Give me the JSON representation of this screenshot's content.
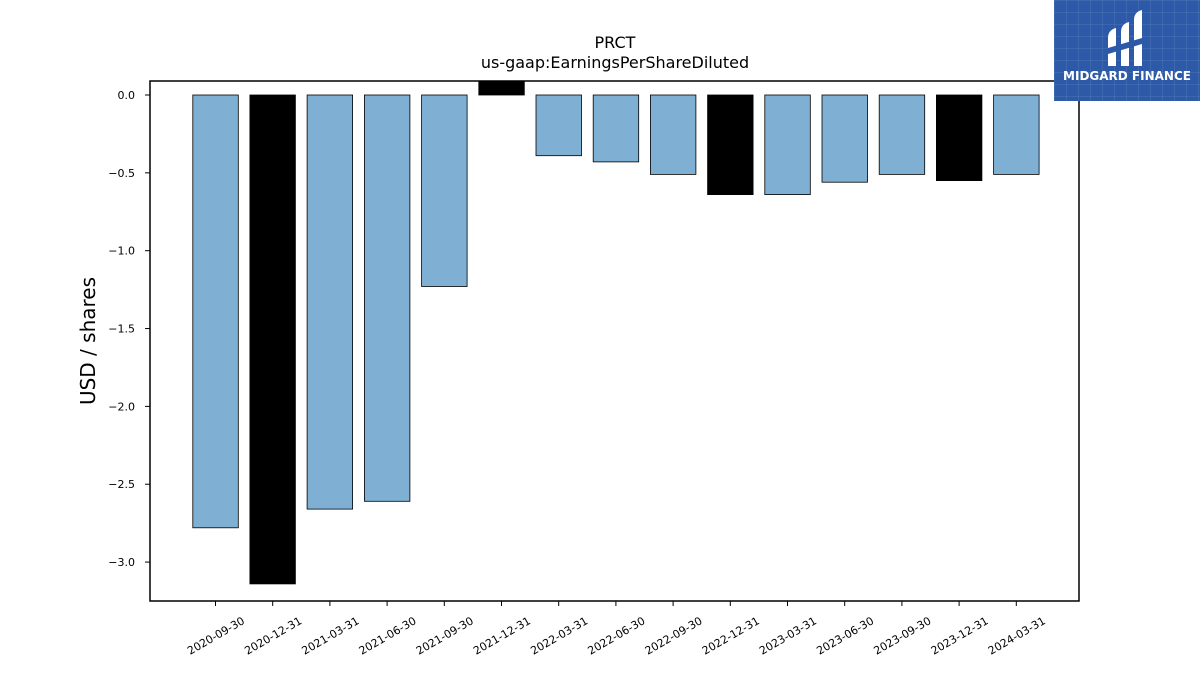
{
  "chart_data": {
    "type": "bar",
    "title": "PRCT",
    "subtitle": "us-gaap:EarningsPerShareDiluted",
    "xlabel": "",
    "ylabel": "USD / shares",
    "ylim": [
      -3.25,
      0.09
    ],
    "yticks": [
      0.0,
      -0.5,
      -1.0,
      -1.5,
      -2.0,
      -2.5,
      -3.0
    ],
    "ytick_labels": [
      "0.0",
      "−0.5",
      "−1.0",
      "−1.5",
      "−2.0",
      "−2.5",
      "−3.0"
    ],
    "categories": [
      "2020-09-30",
      "2020-12-31",
      "2021-03-31",
      "2021-06-30",
      "2021-09-30",
      "2021-12-31",
      "2022-03-31",
      "2022-06-30",
      "2022-09-30",
      "2022-12-31",
      "2023-03-31",
      "2023-06-30",
      "2023-09-30",
      "2023-12-31",
      "2024-03-31"
    ],
    "values": [
      -2.78,
      -3.14,
      -2.66,
      -2.61,
      -1.23,
      0.09,
      -0.39,
      -0.43,
      -0.51,
      -0.64,
      -0.64,
      -0.56,
      -0.51,
      -0.55,
      -0.51
    ],
    "colors": [
      "#7fafd3",
      "#000000",
      "#7fafd3",
      "#7fafd3",
      "#7fafd3",
      "#000000",
      "#7fafd3",
      "#7fafd3",
      "#7fafd3",
      "#000000",
      "#7fafd3",
      "#7fafd3",
      "#7fafd3",
      "#000000",
      "#7fafd3"
    ],
    "grid": false,
    "legend": "none"
  },
  "logo": {
    "text": "MIDGARD FINANCE",
    "background": "#2d5aa8"
  }
}
